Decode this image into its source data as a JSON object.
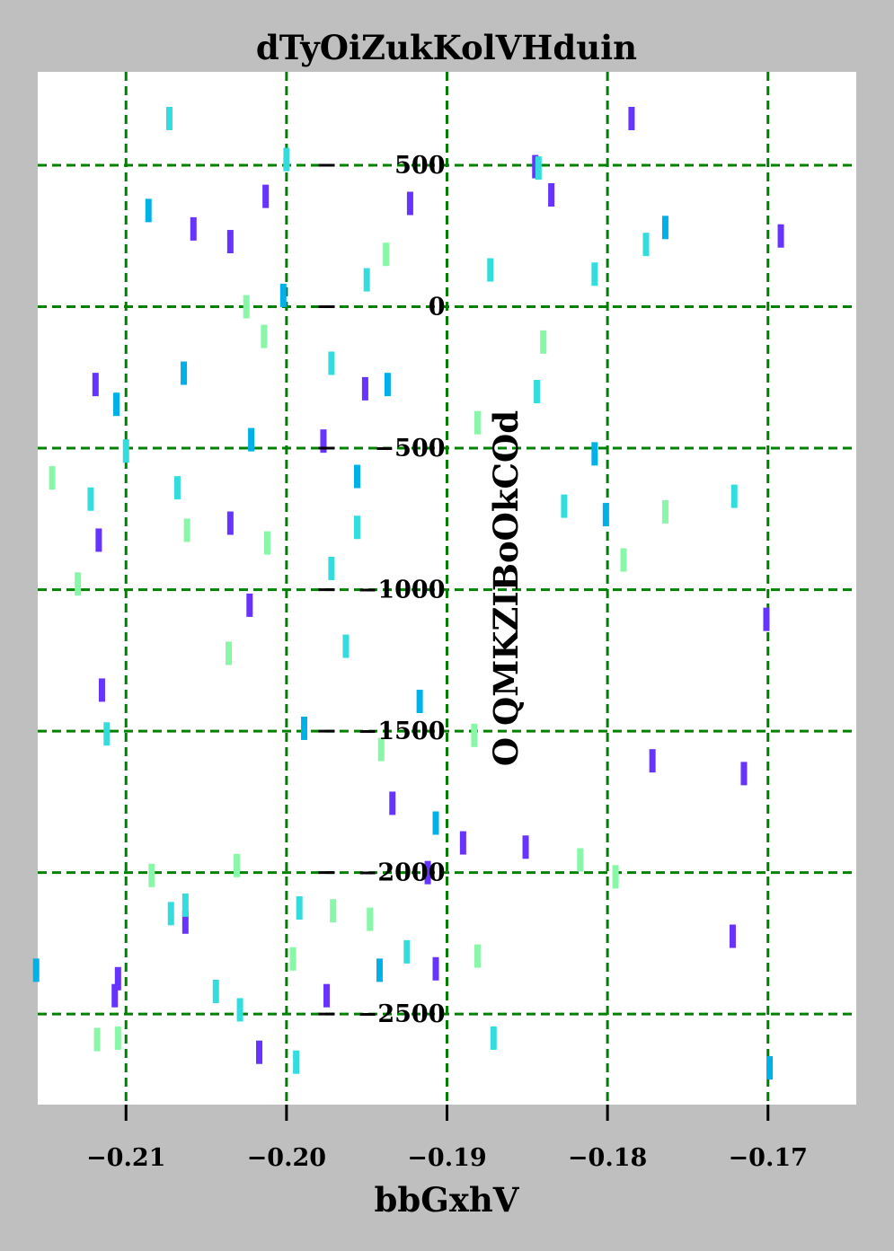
{
  "chart_data": {
    "type": "scatter",
    "title": "dTyOiZukKolVHduin",
    "xlabel": "bbGxhV",
    "ylabel": "O QMKZIBoOkCOd",
    "xlim": [
      -0.2155,
      -0.1645
    ],
    "ylim": [
      -2820,
      830
    ],
    "xticks": [
      -0.21,
      -0.2,
      -0.19,
      -0.18,
      -0.17
    ],
    "xtick_labels": [
      "−0.21",
      "−0.20",
      "−0.19",
      "−0.18",
      "−0.17"
    ],
    "yticks": [
      500,
      0,
      -500,
      -1000,
      -1500,
      -2000,
      -2500
    ],
    "ytick_labels": [
      "500",
      "0",
      "−500",
      "−1000",
      "−1500",
      "−2000",
      "−2500"
    ],
    "grid": true,
    "grid_color": "#008000",
    "marker": "vertical-line",
    "colors": {
      "violet": "#6633ff",
      "blue": "#00b0e8",
      "cyan": "#33dddd",
      "mint": "#88f8a8"
    },
    "series": [
      {
        "color_key": "violet",
        "points": [
          [
            -0.1785,
            665
          ],
          [
            -0.1845,
            495
          ],
          [
            -0.1835,
            395
          ],
          [
            -0.2013,
            390
          ],
          [
            -0.1923,
            365
          ],
          [
            -0.2058,
            275
          ],
          [
            -0.2035,
            230
          ],
          [
            -0.1692,
            250
          ],
          [
            -0.2119,
            -275
          ],
          [
            -0.1951,
            -290
          ],
          [
            -0.1977,
            -475
          ],
          [
            -0.2117,
            -825
          ],
          [
            -0.2035,
            -765
          ],
          [
            -0.2023,
            -1055
          ],
          [
            -0.1701,
            -1105
          ],
          [
            -0.2115,
            -1355
          ],
          [
            -0.1772,
            -1605
          ],
          [
            -0.1715,
            -1650
          ],
          [
            -0.1934,
            -1755
          ],
          [
            -0.189,
            -1895
          ],
          [
            -0.1851,
            -1910
          ],
          [
            -0.1912,
            -2000
          ],
          [
            -0.2063,
            -2175
          ],
          [
            -0.1722,
            -2225
          ],
          [
            -0.2105,
            -2375
          ],
          [
            -0.1907,
            -2340
          ],
          [
            -0.2107,
            -2435
          ],
          [
            -0.1975,
            -2435
          ],
          [
            -0.2017,
            -2635
          ]
        ]
      },
      {
        "color_key": "blue",
        "points": [
          [
            -0.1764,
            280
          ],
          [
            -0.2086,
            340
          ],
          [
            -0.2002,
            40
          ],
          [
            -0.2022,
            -470
          ],
          [
            -0.1808,
            -520
          ],
          [
            -0.1937,
            -275
          ],
          [
            -0.2064,
            -235
          ],
          [
            -0.2106,
            -345
          ],
          [
            -0.1956,
            -600
          ],
          [
            -0.1801,
            -735
          ],
          [
            -0.1917,
            -1395
          ],
          [
            -0.1989,
            -1490
          ],
          [
            -0.1907,
            -1825
          ],
          [
            -0.2156,
            -2345
          ],
          [
            -0.1942,
            -2345
          ],
          [
            -0.1699,
            -2690
          ]
        ]
      },
      {
        "color_key": "cyan",
        "points": [
          [
            -0.2073,
            665
          ],
          [
            -0.2,
            520
          ],
          [
            -0.1843,
            490
          ],
          [
            -0.1776,
            220
          ],
          [
            -0.1873,
            130
          ],
          [
            -0.1808,
            115
          ],
          [
            -0.195,
            95
          ],
          [
            -0.21,
            -510
          ],
          [
            -0.2068,
            -640
          ],
          [
            -0.2122,
            -680
          ],
          [
            -0.1844,
            -300
          ],
          [
            -0.1827,
            -705
          ],
          [
            -0.1956,
            -780
          ],
          [
            -0.1972,
            -925
          ],
          [
            -0.1963,
            -1200
          ],
          [
            -0.2112,
            -1510
          ],
          [
            -0.1972,
            -200
          ],
          [
            -0.2072,
            -2145
          ],
          [
            -0.2063,
            -2115
          ],
          [
            -0.1992,
            -2125
          ],
          [
            -0.1925,
            -2280
          ],
          [
            -0.2044,
            -2420
          ],
          [
            -0.2029,
            -2485
          ],
          [
            -0.1994,
            -2670
          ],
          [
            -0.1871,
            -2585
          ],
          [
            -0.1721,
            -670
          ]
        ]
      },
      {
        "color_key": "mint",
        "points": [
          [
            -0.1938,
            185
          ],
          [
            -0.2025,
            0
          ],
          [
            -0.2014,
            -105
          ],
          [
            -0.184,
            -125
          ],
          [
            -0.1881,
            -410
          ],
          [
            -0.2146,
            -605
          ],
          [
            -0.2062,
            -790
          ],
          [
            -0.2012,
            -835
          ],
          [
            -0.1764,
            -725
          ],
          [
            -0.179,
            -895
          ],
          [
            -0.213,
            -980
          ],
          [
            -0.2036,
            -1225
          ],
          [
            -0.1941,
            -1565
          ],
          [
            -0.1883,
            -1515
          ],
          [
            -0.2084,
            -2010
          ],
          [
            -0.2031,
            -1975
          ],
          [
            -0.1817,
            -1955
          ],
          [
            -0.1795,
            -2015
          ],
          [
            -0.1971,
            -2135
          ],
          [
            -0.1948,
            -2165
          ],
          [
            -0.1996,
            -2305
          ],
          [
            -0.1881,
            -2295
          ],
          [
            -0.2118,
            -2590
          ],
          [
            -0.2105,
            -2585
          ]
        ]
      }
    ]
  }
}
